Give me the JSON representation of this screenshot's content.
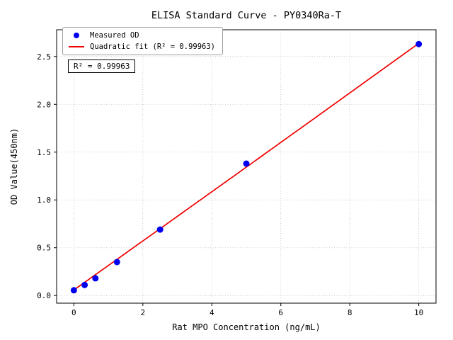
{
  "chart_data": {
    "type": "scatter",
    "title": "ELISA Standard Curve - PY0340Ra-T",
    "xlabel": "Rat MPO Concentration (ng/mL)",
    "ylabel": "OD Value(450nm)",
    "xlim": [
      -0.5,
      10.5
    ],
    "ylim": [
      -0.08,
      2.78
    ],
    "x_ticks": [
      0,
      2,
      4,
      6,
      8,
      10
    ],
    "y_ticks": [
      0,
      0.5,
      1,
      1.5,
      2,
      2.5
    ],
    "grid": true,
    "legend_position": "upper-left",
    "annotation": "R² = 0.99963",
    "series": [
      {
        "name": "Measured OD",
        "type": "scatter",
        "color": "#0000ee",
        "x": [
          0,
          0.3125,
          0.625,
          1.25,
          2.5,
          5,
          10
        ],
        "y": [
          0.055,
          0.11,
          0.18,
          0.35,
          0.69,
          1.38,
          2.63
        ]
      },
      {
        "name": "Quadratic fit (R² = 0.99963)",
        "type": "line",
        "color": "#ee0000",
        "r_squared": "0.99963",
        "fit": {
          "a": 0.0002,
          "b": 0.256,
          "c": 0.058,
          "x_range": [
            0,
            10
          ]
        }
      }
    ]
  }
}
